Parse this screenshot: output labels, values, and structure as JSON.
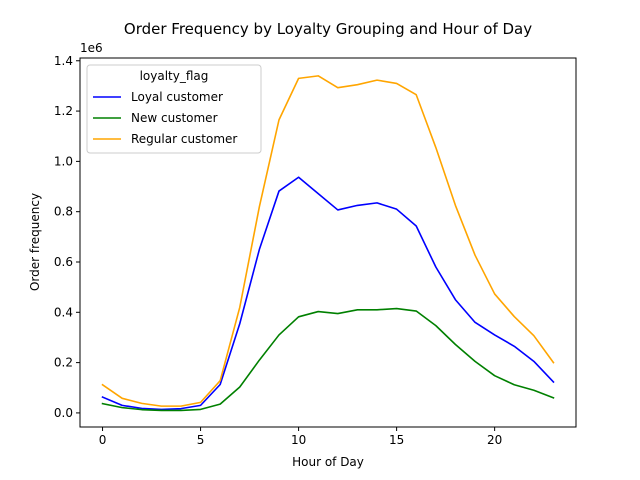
{
  "chart_data": {
    "type": "line",
    "title": "Order Frequency by Loyalty Grouping and Hour of Day",
    "xlabel": "Hour of Day",
    "ylabel": "Order frequency",
    "y_multiplier_label": "1e6",
    "xlim": [
      -1.15,
      24.15
    ],
    "ylim": [
      -0.056,
      1.411
    ],
    "x_ticks": [
      0,
      5,
      10,
      15,
      20
    ],
    "y_ticks": [
      0.0,
      0.2,
      0.4,
      0.6,
      0.8,
      1.0,
      1.2,
      1.4
    ],
    "y_tick_labels": [
      "0.0",
      "0.2",
      "0.4",
      "0.6",
      "0.8",
      "1.0",
      "1.2",
      "1.4"
    ],
    "grid": false,
    "legend": {
      "title": "loyalty_flag",
      "placement": "top-left"
    },
    "x": [
      0,
      1,
      2,
      3,
      4,
      5,
      6,
      7,
      8,
      9,
      10,
      11,
      12,
      13,
      14,
      15,
      16,
      17,
      18,
      19,
      20,
      21,
      22,
      23
    ],
    "series": [
      {
        "name": "Loyal customer",
        "color": "#0000ff",
        "values": [
          0.063,
          0.03,
          0.018,
          0.014,
          0.017,
          0.03,
          0.113,
          0.355,
          0.65,
          0.882,
          0.937,
          0.872,
          0.807,
          0.825,
          0.835,
          0.81,
          0.743,
          0.58,
          0.45,
          0.36,
          0.31,
          0.265,
          0.205,
          0.123
        ]
      },
      {
        "name": "New customer",
        "color": "#008000",
        "values": [
          0.037,
          0.021,
          0.013,
          0.01,
          0.01,
          0.014,
          0.035,
          0.103,
          0.21,
          0.31,
          0.382,
          0.403,
          0.395,
          0.41,
          0.41,
          0.415,
          0.405,
          0.347,
          0.272,
          0.205,
          0.148,
          0.112,
          0.09,
          0.06
        ]
      },
      {
        "name": "Regular customer",
        "color": "#ffa500",
        "values": [
          0.112,
          0.058,
          0.038,
          0.027,
          0.027,
          0.042,
          0.128,
          0.42,
          0.82,
          1.165,
          1.33,
          1.34,
          1.293,
          1.305,
          1.323,
          1.31,
          1.265,
          1.055,
          0.825,
          0.627,
          0.473,
          0.383,
          0.307,
          0.2
        ]
      }
    ]
  }
}
